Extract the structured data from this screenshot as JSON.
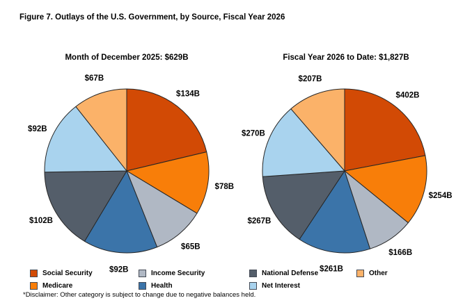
{
  "page": {
    "title": "Figure 7. Outlays of the U.S. Government, by Source, Fiscal Year 2026",
    "footnote": "*Disclaimer: Other category is subject to change due to negative balances held."
  },
  "palette": {
    "social_security": "#D24A05",
    "medicare": "#F87E09",
    "income_security": "#B0B8C4",
    "health": "#3B74A9",
    "national_defense": "#545E6A",
    "net_interest": "#A9D3EE",
    "other": "#FBB269",
    "slice_stroke": "#262626"
  },
  "chart_data": [
    {
      "type": "pie",
      "title": "Month of December 2025: $629B",
      "categories": [
        "Social Security",
        "Medicare",
        "Income Security",
        "Health",
        "National Defense",
        "Net Interest",
        "Other"
      ],
      "values": [
        134,
        78,
        65,
        92,
        102,
        92,
        67
      ],
      "labels": [
        "$134B",
        "$78B",
        "$65B",
        "$92B",
        "$102B",
        "$92B",
        "$67B"
      ],
      "color_keys": [
        "social_security",
        "medicare",
        "income_security",
        "health",
        "national_defense",
        "net_interest",
        "other"
      ],
      "start_angle_deg": 0,
      "direction": "clockwise",
      "legend_position": "bottom"
    },
    {
      "type": "pie",
      "title": "Fiscal Year 2026 to Date: $1,827B",
      "categories": [
        "Social Security",
        "Medicare",
        "Income Security",
        "Health",
        "National Defense",
        "Net Interest",
        "Other"
      ],
      "values": [
        402,
        254,
        166,
        261,
        267,
        270,
        207
      ],
      "labels": [
        "$402B",
        "$254B",
        "$166B",
        "$261B",
        "$267B",
        "$270B",
        "$207B"
      ],
      "color_keys": [
        "social_security",
        "medicare",
        "income_security",
        "health",
        "national_defense",
        "net_interest",
        "other"
      ],
      "start_angle_deg": 0,
      "direction": "clockwise",
      "legend_position": "bottom"
    }
  ],
  "legend": {
    "items": [
      {
        "label": "Social Security",
        "color_key": "social_security"
      },
      {
        "label": "Medicare",
        "color_key": "medicare"
      },
      {
        "label": "Income Security",
        "color_key": "income_security"
      },
      {
        "label": "Health",
        "color_key": "health"
      },
      {
        "label": "National Defense",
        "color_key": "national_defense"
      },
      {
        "label": "Net Interest",
        "color_key": "net_interest"
      },
      {
        "label": "Other",
        "color_key": "other"
      }
    ]
  }
}
